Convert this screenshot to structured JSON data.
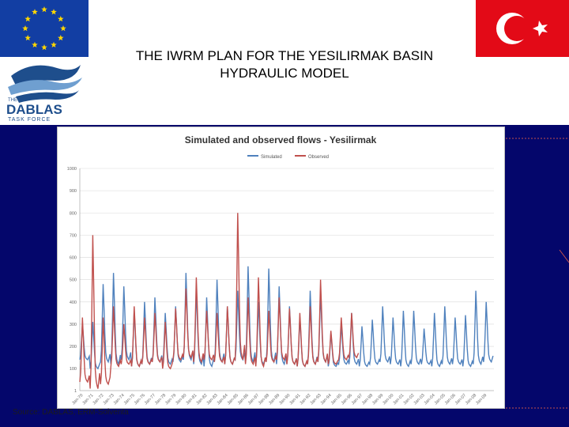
{
  "slide": {
    "title_line1": "THE IWRM PLAN FOR THE YESILIRMAK BASIN",
    "title_line2": "HYDRAULIC MODEL",
    "source": "Source: DABLAS, ERM-Solventa",
    "logo_text_the": "THE",
    "logo_text_name": "DABLAS",
    "logo_text_sub": "TASK FORCE"
  },
  "colors": {
    "background": "#04066b",
    "eu_blue": "#123ea3",
    "eu_star": "#ffd700",
    "turkey_red": "#e30a17",
    "simulated": "#4f81bd",
    "observed": "#c0504d",
    "logo_blue": "#1e4e8c"
  },
  "icons": [
    "eu-flag-icon",
    "turkey-flag-icon",
    "dablas-logo-icon"
  ],
  "chart_data": {
    "type": "line",
    "title": "Simulated and observed flows - Yesilirmak",
    "legend_position": "top-center",
    "grid": true,
    "ylim": [
      1,
      1000
    ],
    "ytick_labels": [
      "1000",
      "900",
      "800",
      "700",
      "600",
      "500",
      "400",
      "300",
      "200",
      "100",
      "1"
    ],
    "x": [
      "Jan-70",
      "Jan-71",
      "Jan-72",
      "Jan-73",
      "Jan-74",
      "Jan-75",
      "Jan-76",
      "Jan-77",
      "Jan-78",
      "Jan-79",
      "Jan-80",
      "Jan-81",
      "Jan-82",
      "Jan-83",
      "Jan-84",
      "Jan-85",
      "Jan-86",
      "Jan-87",
      "Jan-88",
      "Jan-89",
      "Jan-90",
      "Jan-91",
      "Jan-92",
      "Jan-93",
      "Jan-94",
      "Jan-95",
      "Jan-96",
      "Jan-97",
      "Jan-98",
      "Jan-99",
      "Jan-00",
      "Jan-01",
      "Jan-02",
      "Jan-03",
      "Jan-04",
      "Jan-05",
      "Jan-06",
      "Jan-07",
      "Jan-08",
      "Jan-09"
    ],
    "series": [
      {
        "name": "Simulated",
        "color": "#4f81bd",
        "peaks": [
          300,
          310,
          480,
          530,
          470,
          360,
          400,
          420,
          350,
          380,
          530,
          450,
          420,
          500,
          380,
          450,
          560,
          400,
          550,
          470,
          380,
          330,
          450,
          440,
          260,
          300,
          350,
          290,
          320,
          380,
          330,
          360,
          360,
          280,
          350,
          380,
          330,
          340,
          450,
          400
        ],
        "troughs": [
          140,
          100,
          130,
          120,
          140,
          110,
          120,
          130,
          120,
          130,
          140,
          120,
          110,
          130,
          120,
          140,
          130,
          120,
          130,
          120,
          120,
          110,
          120,
          130,
          110,
          120,
          120,
          110,
          120,
          130,
          120,
          110,
          120,
          120,
          110,
          120,
          120,
          110,
          120,
          130
        ]
      },
      {
        "name": "Observed",
        "color": "#c0504d",
        "peaks": [
          330,
          700,
          330,
          380,
          300,
          380,
          330,
          350,
          310,
          370,
          460,
          510,
          360,
          350,
          380,
          800,
          420,
          510,
          360,
          420,
          370,
          350,
          380,
          500,
          270,
          330,
          350
        ],
        "troughs": [
          40,
          10,
          30,
          110,
          120,
          110,
          120,
          130,
          100,
          140,
          150,
          130,
          140,
          130,
          120,
          140,
          120,
          110,
          130,
          140,
          120,
          110,
          120,
          130,
          120,
          140,
          150
        ]
      }
    ]
  }
}
